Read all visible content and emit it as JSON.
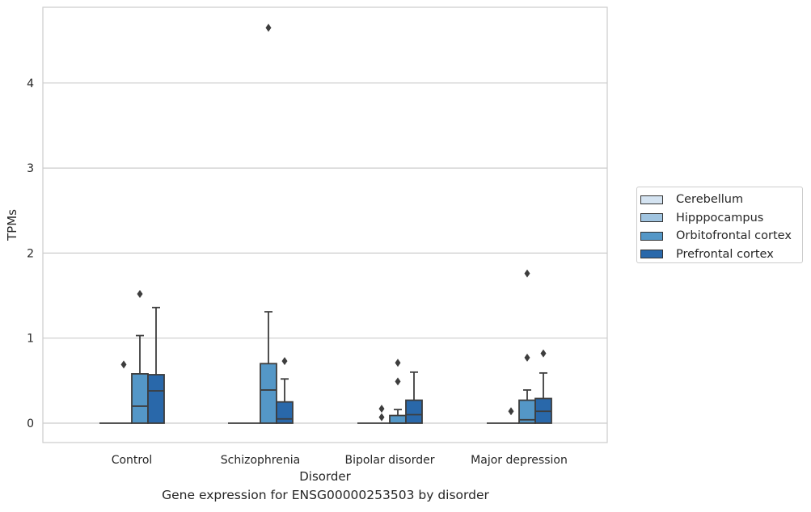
{
  "chart_data": {
    "type": "box",
    "title": "",
    "caption": "Gene expression for ENSG00000253503 by disorder",
    "xlabel": "Disorder",
    "ylabel": "TPMs",
    "ylim": [
      -0.22,
      4.86
    ],
    "yticks": [
      "0",
      "1",
      "2",
      "3",
      "4"
    ],
    "ytick_values": [
      0,
      1,
      2,
      3,
      4
    ],
    "grid": "horizontal",
    "legend_position": "right",
    "categories": [
      "Control",
      "Schizophrenia",
      "Bipolar disorder",
      "Major depression"
    ],
    "series": [
      {
        "name": "Cerebellum",
        "color": "#d4e3f1",
        "boxes": [
          {
            "q1": 0,
            "median": 0,
            "q3": 0,
            "whisker_low": 0,
            "whisker_high": 0,
            "outliers": []
          },
          {
            "q1": 0,
            "median": 0,
            "q3": 0,
            "whisker_low": 0,
            "whisker_high": 0,
            "outliers": []
          },
          {
            "q1": 0,
            "median": 0,
            "q3": 0,
            "whisker_low": 0,
            "whisker_high": 0,
            "outliers": []
          },
          {
            "q1": 0,
            "median": 0,
            "q3": 0,
            "whisker_low": 0,
            "whisker_high": 0,
            "outliers": []
          }
        ]
      },
      {
        "name": "Hipppocampus",
        "color": "#a0c4e0",
        "boxes": [
          {
            "q1": 0,
            "median": 0,
            "q3": 0,
            "whisker_low": 0,
            "whisker_high": 0,
            "outliers": [
              0.69
            ]
          },
          {
            "q1": 0,
            "median": 0,
            "q3": 0,
            "whisker_low": 0,
            "whisker_high": 0,
            "outliers": []
          },
          {
            "q1": 0,
            "median": 0,
            "q3": 0,
            "whisker_low": 0,
            "whisker_high": 0,
            "outliers": [
              0.07,
              0.17
            ]
          },
          {
            "q1": 0,
            "median": 0,
            "q3": 0,
            "whisker_low": 0,
            "whisker_high": 0,
            "outliers": [
              0.14
            ]
          }
        ]
      },
      {
        "name": "Orbitofrontal cortex",
        "color": "#5497c7",
        "boxes": [
          {
            "q1": 0,
            "median": 0.2,
            "q3": 0.58,
            "whisker_low": 0,
            "whisker_high": 1.03,
            "outliers": [
              1.52
            ]
          },
          {
            "q1": 0,
            "median": 0.39,
            "q3": 0.7,
            "whisker_low": 0,
            "whisker_high": 1.31,
            "outliers": [
              4.65
            ]
          },
          {
            "q1": 0,
            "median": 0.0,
            "q3": 0.09,
            "whisker_low": 0,
            "whisker_high": 0.16,
            "outliers": [
              0.49,
              0.71
            ]
          },
          {
            "q1": 0,
            "median": 0.04,
            "q3": 0.27,
            "whisker_low": 0,
            "whisker_high": 0.39,
            "outliers": [
              0.77,
              1.76
            ]
          }
        ]
      },
      {
        "name": "Prefrontal cortex",
        "color": "#2968aa",
        "boxes": [
          {
            "q1": 0,
            "median": 0.38,
            "q3": 0.57,
            "whisker_low": 0,
            "whisker_high": 1.36,
            "outliers": []
          },
          {
            "q1": 0,
            "median": 0.05,
            "q3": 0.25,
            "whisker_low": 0,
            "whisker_high": 0.52,
            "outliers": [
              0.73
            ]
          },
          {
            "q1": 0,
            "median": 0.1,
            "q3": 0.27,
            "whisker_low": 0,
            "whisker_high": 0.6,
            "outliers": []
          },
          {
            "q1": 0,
            "median": 0.14,
            "q3": 0.29,
            "whisker_low": 0,
            "whisker_high": 0.59,
            "outliers": [
              0.82
            ]
          }
        ]
      }
    ]
  }
}
